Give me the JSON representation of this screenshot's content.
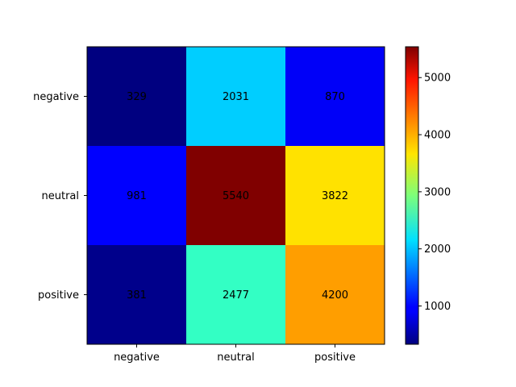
{
  "chart_data": {
    "type": "heatmap",
    "colormap": "jet",
    "rows": [
      "negative",
      "neutral",
      "positive"
    ],
    "cols": [
      "negative",
      "neutral",
      "positive"
    ],
    "values": [
      [
        329,
        2031,
        870
      ],
      [
        981,
        5540,
        3822
      ],
      [
        381,
        2477,
        4200
      ]
    ],
    "color_range": [
      329,
      5540
    ],
    "colorbar_ticks": [
      "1000",
      "2000",
      "3000",
      "4000",
      "5000"
    ],
    "title": "",
    "xlabel": "",
    "ylabel": ""
  }
}
